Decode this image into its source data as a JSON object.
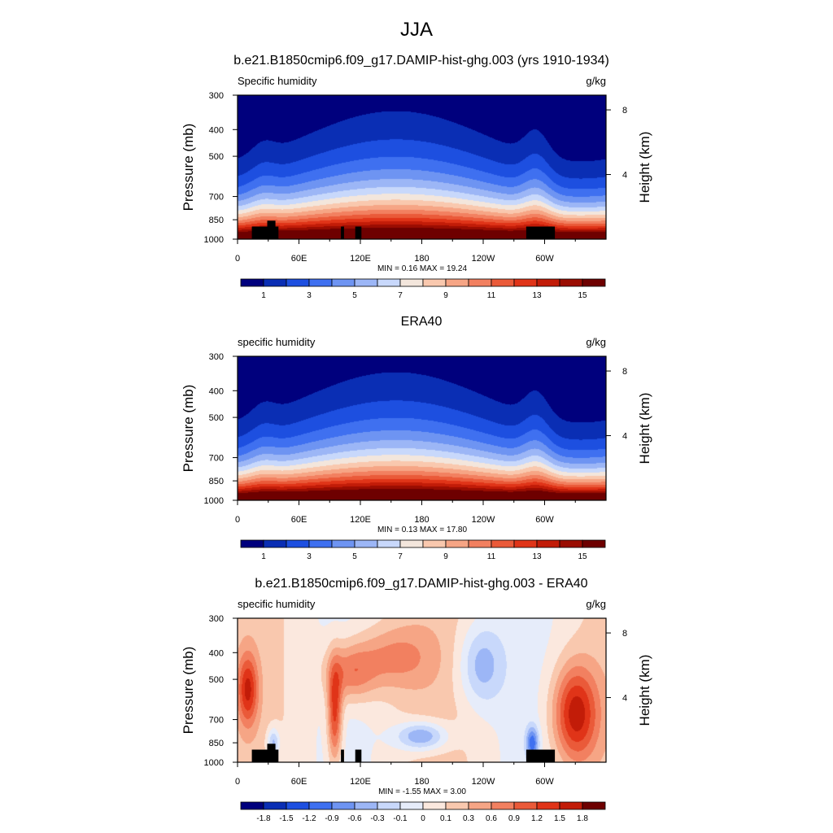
{
  "figure": {
    "season_title": "JJA"
  },
  "chart_data": [
    {
      "type": "heatmap",
      "title": "b.e21.B1850cmip6.f09_g17.DAMIP-hist-ghg.003 (yrs 1910-1934)",
      "left_label": "Specific humidity",
      "right_label": "g/kg",
      "ylabel": "Pressure (mb)",
      "y2label": "Height (km)",
      "x_tick_labels": [
        "0",
        "60E",
        "120E",
        "180",
        "120W",
        "60W"
      ],
      "y_tick_labels": [
        "300",
        "400",
        "500",
        "700",
        "850",
        "1000"
      ],
      "y2_tick_labels": [
        "8",
        "4"
      ],
      "stats": "MIN =   0.16  MAX =  19.24",
      "colorbar_labels": [
        "1",
        "3",
        "5",
        "7",
        "9",
        "11",
        "13",
        "15"
      ],
      "colorbar_colors": [
        "#00007d",
        "#0a2eb4",
        "#1d4fe0",
        "#3f70f0",
        "#6e94f2",
        "#9cb6f6",
        "#c8d8fb",
        "#f3e6dc",
        "#f9c8ae",
        "#f6a585",
        "#f28060",
        "#ea5a39",
        "#e03418",
        "#c21c08",
        "#9a0d02",
        "#6e0000"
      ],
      "levels_min": 0,
      "levels_max": 16,
      "value_range": [
        0.16,
        19.24
      ],
      "topo": true,
      "pattern": "abs"
    },
    {
      "type": "heatmap",
      "title": "ERA40",
      "left_label": "specific humidity",
      "right_label": "g/kg",
      "ylabel": "Pressure (mb)",
      "y2label": "Height (km)",
      "x_tick_labels": [
        "0",
        "60E",
        "120E",
        "180",
        "120W",
        "60W"
      ],
      "y_tick_labels": [
        "300",
        "400",
        "500",
        "700",
        "850",
        "1000"
      ],
      "y2_tick_labels": [
        "8",
        "4"
      ],
      "stats": "MIN =   0.13  MAX =  17.80",
      "colorbar_labels": [
        "1",
        "3",
        "5",
        "7",
        "9",
        "11",
        "13",
        "15"
      ],
      "colorbar_colors": [
        "#00007d",
        "#0a2eb4",
        "#1d4fe0",
        "#3f70f0",
        "#6e94f2",
        "#9cb6f6",
        "#c8d8fb",
        "#f3e6dc",
        "#f9c8ae",
        "#f6a585",
        "#f28060",
        "#ea5a39",
        "#e03418",
        "#c21c08",
        "#9a0d02",
        "#6e0000"
      ],
      "levels_min": 0,
      "levels_max": 16,
      "value_range": [
        0.13,
        17.8
      ],
      "topo": false,
      "pattern": "abs"
    },
    {
      "type": "heatmap",
      "title": "b.e21.B1850cmip6.f09_g17.DAMIP-hist-ghg.003 - ERA40",
      "left_label": "specific humidity",
      "right_label": "g/kg",
      "ylabel": "Pressure (mb)",
      "y2label": "Height (km)",
      "x_tick_labels": [
        "0",
        "60E",
        "120E",
        "180",
        "120W",
        "60W"
      ],
      "y_tick_labels": [
        "300",
        "400",
        "500",
        "700",
        "850",
        "1000"
      ],
      "y2_tick_labels": [
        "8",
        "4"
      ],
      "stats": "MIN =  -1.55  MAX =   3.00",
      "colorbar_labels": [
        "-1.8",
        "-1.5",
        "-1.2",
        "-0.9",
        "-0.6",
        "-0.3",
        "-0.1",
        "0",
        "0.1",
        "0.3",
        "0.6",
        "0.9",
        "1.2",
        "1.5",
        "1.8"
      ],
      "colorbar_colors": [
        "#00007d",
        "#0a2eb4",
        "#1d4fe0",
        "#3f70f0",
        "#6e94f2",
        "#9cb6f6",
        "#c8d8fb",
        "#e6ecfa",
        "#fbe8de",
        "#f9c8ae",
        "#f6a585",
        "#f28060",
        "#ea5a39",
        "#e03418",
        "#c21c08",
        "#6e0000"
      ],
      "levels_min": -2.1,
      "levels_max": 2.1,
      "value_range": [
        -1.55,
        3.0
      ],
      "topo": true,
      "pattern": "diff"
    }
  ]
}
